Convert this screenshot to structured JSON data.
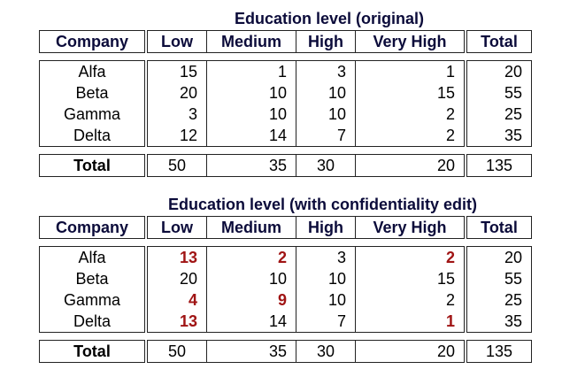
{
  "table1": {
    "title": "Education level (original)",
    "headers": [
      "Company",
      "Low",
      "Medium",
      "High",
      "Very High",
      "Total"
    ],
    "rows": [
      {
        "company": "Alfa",
        "values": [
          "15",
          "1",
          "3",
          "1",
          "20"
        ]
      },
      {
        "company": "Beta",
        "values": [
          "20",
          "10",
          "10",
          "15",
          "55"
        ]
      },
      {
        "company": "Gamma",
        "values": [
          "3",
          "10",
          "10",
          "2",
          "25"
        ]
      },
      {
        "company": "Delta",
        "values": [
          "12",
          "14",
          "7",
          "2",
          "35"
        ]
      }
    ],
    "total": {
      "label": "Total",
      "values": [
        "50",
        "35",
        "30",
        "20",
        "135"
      ]
    }
  },
  "table2": {
    "title": "Education level (with confidentiality edit)",
    "headers": [
      "Company",
      "Low",
      "Medium",
      "High",
      "Very High",
      "Total"
    ],
    "rows": [
      {
        "company": "Alfa",
        "values": [
          "13",
          "2",
          "3",
          "2",
          "20"
        ]
      },
      {
        "company": "Beta",
        "values": [
          "20",
          "10",
          "10",
          "15",
          "55"
        ]
      },
      {
        "company": "Gamma",
        "values": [
          "4",
          "9",
          "10",
          "2",
          "25"
        ]
      },
      {
        "company": "Delta",
        "values": [
          "13",
          "14",
          "7",
          "1",
          "35"
        ]
      }
    ],
    "total": {
      "label": "Total",
      "values": [
        "50",
        "35",
        "30",
        "20",
        "135"
      ]
    }
  },
  "colors": {
    "highlight": "#a01414",
    "header": "#0b0b3a"
  }
}
